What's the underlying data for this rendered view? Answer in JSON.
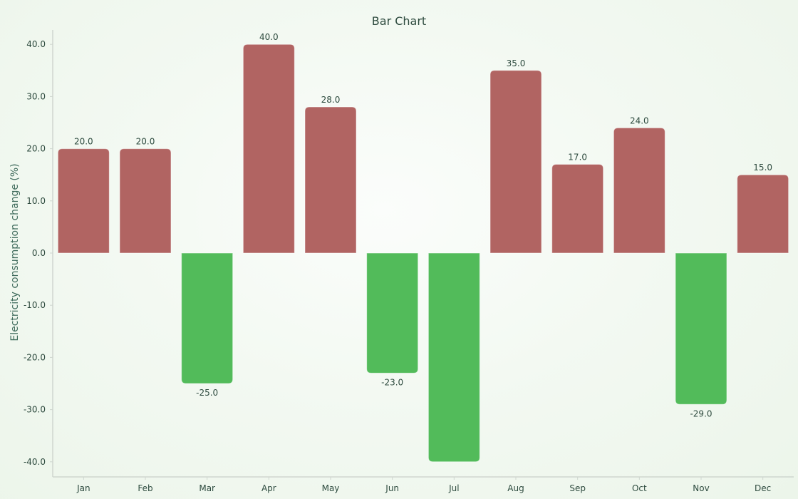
{
  "chart_data": {
    "type": "bar",
    "title": "Bar Chart",
    "xlabel": "",
    "ylabel": "Electricity consumption change (%)",
    "categories": [
      "Jan",
      "Feb",
      "Mar",
      "Apr",
      "May",
      "Jun",
      "Jul",
      "Aug",
      "Sep",
      "Oct",
      "Nov",
      "Dec"
    ],
    "values": [
      20.0,
      20.0,
      -25.0,
      40.0,
      28.0,
      -23.0,
      -40.0,
      35.0,
      17.0,
      24.0,
      -29.0,
      15.0
    ],
    "data_labels": [
      "20.0",
      "20.0",
      "-25.0",
      "40.0",
      "28.0",
      "-23.0",
      "",
      "35.0",
      "17.0",
      "24.0",
      "-29.0",
      "15.0"
    ],
    "y_ticks": [
      40,
      30,
      20,
      10,
      0,
      -10,
      -20,
      -30,
      -40
    ],
    "y_tick_labels": [
      "40.0",
      "30.0",
      "20.0",
      "10.0",
      "0.0",
      "-10.0",
      "-20.0",
      "-30.0",
      "-40.0"
    ],
    "ylim": [
      -43,
      43
    ],
    "grid": false,
    "legend": "none",
    "colors": {
      "positive": "#b16462",
      "negative": "#52bb5a",
      "axis": "#cfd6cf",
      "text": "#2d4a3e"
    }
  }
}
